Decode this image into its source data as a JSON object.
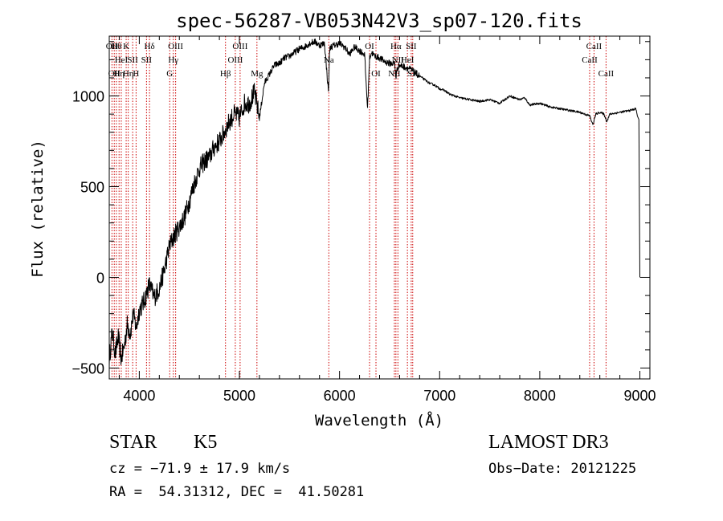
{
  "chart_data": {
    "type": "line",
    "title": "spec-56287-VB053N42V3_sp07-120.fits",
    "xlabel": "Wavelength (Å)",
    "ylabel": "Flux (relative)",
    "xlim": [
      3700,
      9100
    ],
    "ylim": [
      -560,
      1330
    ],
    "xticks": [
      4000,
      5000,
      6000,
      7000,
      8000,
      9000
    ],
    "yticks": [
      -500,
      0,
      500,
      1000
    ],
    "line_color": "#000000",
    "marker_color": "#cc0000",
    "spectrum": {
      "name": "flux",
      "x": [
        3700,
        3730,
        3760,
        3790,
        3820,
        3850,
        3880,
        3910,
        3940,
        3970,
        4000,
        4050,
        4100,
        4150,
        4200,
        4250,
        4300,
        4350,
        4400,
        4450,
        4500,
        4550,
        4600,
        4650,
        4700,
        4750,
        4800,
        4850,
        4900,
        4950,
        5000,
        5050,
        5100,
        5150,
        5200,
        5250,
        5300,
        5350,
        5400,
        5450,
        5500,
        5550,
        5600,
        5650,
        5700,
        5750,
        5800,
        5850,
        5890,
        5900,
        5910,
        5950,
        6000,
        6050,
        6100,
        6150,
        6200,
        6250,
        6280,
        6300,
        6320,
        6350,
        6400,
        6450,
        6500,
        6550,
        6563,
        6580,
        6600,
        6650,
        6700,
        6750,
        6800,
        6850,
        6900,
        6950,
        7000,
        7050,
        7100,
        7150,
        7200,
        7300,
        7400,
        7500,
        7600,
        7700,
        7800,
        7850,
        7900,
        8000,
        8100,
        8200,
        8300,
        8400,
        8500,
        8530,
        8560,
        8600,
        8640,
        8670,
        8700,
        8800,
        8900,
        8960,
        8975,
        8990,
        9000
      ],
      "values": [
        -450,
        -300,
        -420,
        -330,
        -450,
        -380,
        -260,
        -310,
        -200,
        -280,
        -180,
        -130,
        -40,
        -110,
        -60,
        40,
        170,
        230,
        280,
        330,
        420,
        520,
        600,
        640,
        660,
        720,
        750,
        800,
        860,
        900,
        880,
        960,
        960,
        1020,
        880,
        1070,
        1120,
        1170,
        1180,
        1210,
        1220,
        1240,
        1260,
        1270,
        1290,
        1300,
        1280,
        1290,
        1020,
        1250,
        1270,
        1280,
        1290,
        1270,
        1230,
        1270,
        1250,
        1230,
        930,
        1210,
        1240,
        1220,
        1210,
        1190,
        1180,
        1180,
        1100,
        1160,
        1170,
        1160,
        1150,
        1130,
        1110,
        1090,
        1070,
        1060,
        1040,
        1030,
        1010,
        1000,
        990,
        980,
        970,
        980,
        960,
        1000,
        980,
        990,
        950,
        960,
        940,
        930,
        920,
        910,
        890,
        840,
        900,
        910,
        900,
        860,
        900,
        910,
        920,
        930,
        890,
        870,
        0
      ]
    },
    "line_markers": [
      {
        "w": 3727,
        "label": "OII",
        "row": 1
      },
      {
        "w": 3750,
        "label": "OII",
        "row": 3
      },
      {
        "w": 3771,
        "label": "Hθ",
        "row": 1
      },
      {
        "w": 3798,
        "label": "Hη",
        "row": 3
      },
      {
        "w": 3820,
        "label": "HeI",
        "row": 2
      },
      {
        "w": 3869,
        "label": "K",
        "row": 1
      },
      {
        "w": 3890,
        "label": "Hη",
        "row": 3
      },
      {
        "w": 3934,
        "label": "SII",
        "row": 2
      },
      {
        "w": 3968,
        "label": "H",
        "row": 3
      },
      {
        "w": 4072,
        "label": "SII",
        "row": 2
      },
      {
        "w": 4102,
        "label": "Hδ",
        "row": 1
      },
      {
        "w": 4304,
        "label": "G",
        "row": 3
      },
      {
        "w": 4340,
        "label": "Hγ",
        "row": 2
      },
      {
        "w": 4363,
        "label": "OIII",
        "row": 1
      },
      {
        "w": 4861,
        "label": "Hβ",
        "row": 3
      },
      {
        "w": 4959,
        "label": "OIII",
        "row": 2
      },
      {
        "w": 5007,
        "label": "OIII",
        "row": 1
      },
      {
        "w": 5175,
        "label": "Mg",
        "row": 3
      },
      {
        "w": 5893,
        "label": "Na",
        "row": 2
      },
      {
        "w": 6300,
        "label": "OI",
        "row": 1
      },
      {
        "w": 6364,
        "label": "OI",
        "row": 3
      },
      {
        "w": 6548,
        "label": "NII",
        "row": 3
      },
      {
        "w": 6563,
        "label": "Hα",
        "row": 1
      },
      {
        "w": 6583,
        "label": "NII",
        "row": 2
      },
      {
        "w": 6678,
        "label": "HeI",
        "row": 2
      },
      {
        "w": 6716,
        "label": "SII",
        "row": 1
      },
      {
        "w": 6731,
        "label": "SII",
        "row": 3
      },
      {
        "w": 8498,
        "label": "CaII",
        "row": 2
      },
      {
        "w": 8542,
        "label": "CaII",
        "row": 1
      },
      {
        "w": 8662,
        "label": "CaII",
        "row": 3
      }
    ]
  },
  "info": {
    "class_label": "STAR",
    "subclass": "K5",
    "survey": "LAMOST DR3",
    "redshift": "cz = −71.9 ± 17.9 km/s",
    "obs_date": "Obs−Date: 20121225",
    "coords": "RA =  54.31312, DEC =  41.50281"
  }
}
